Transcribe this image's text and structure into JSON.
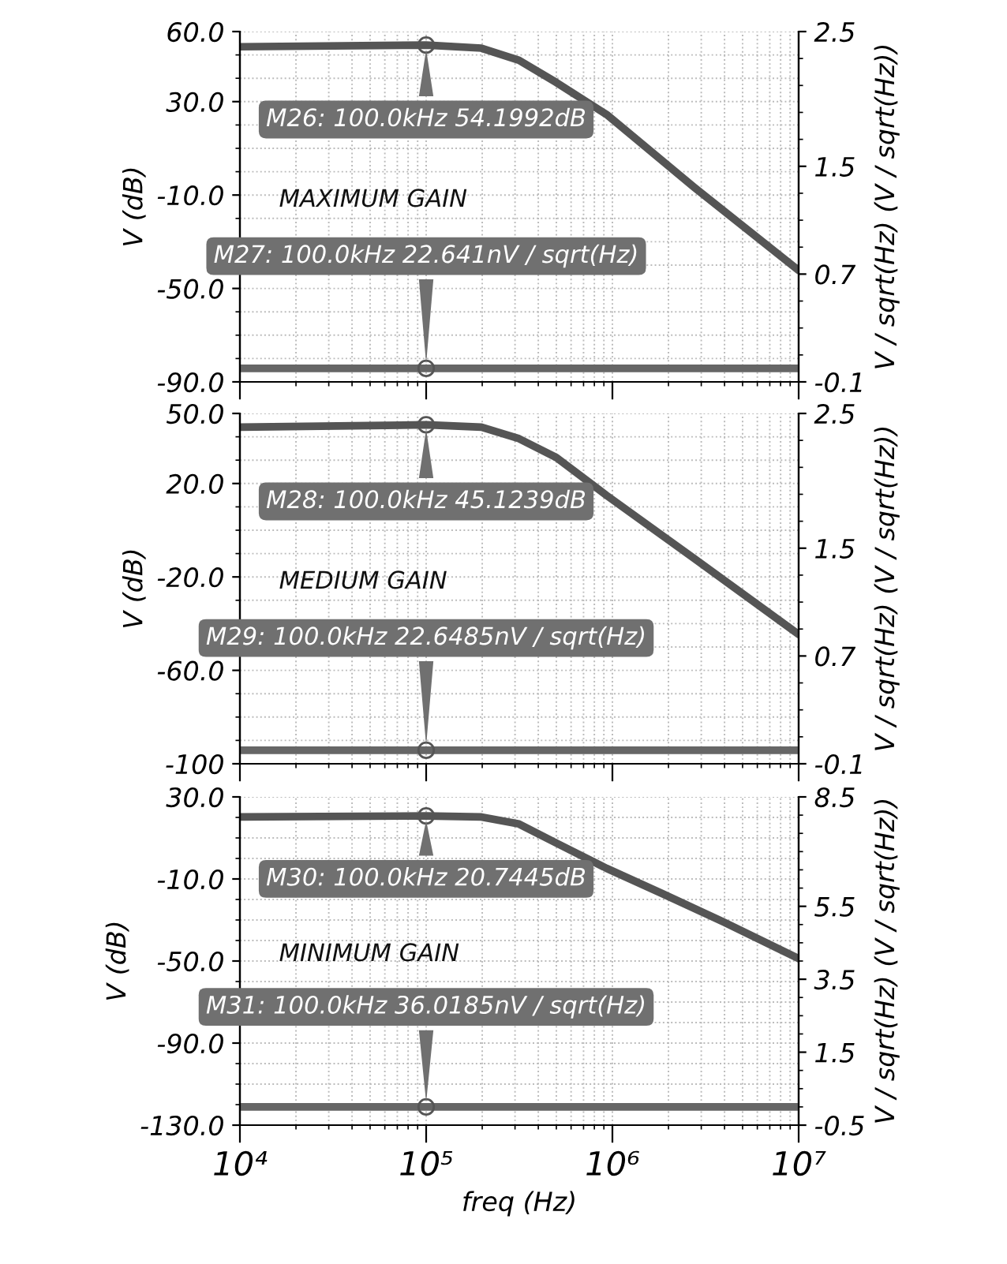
{
  "chart_data": [
    {
      "type": "line",
      "log": "x",
      "grid": true,
      "tick_labels": "y",
      "line_style": "solid",
      "ylabel": "V (dB)",
      "y2label": "V / sqrt(Hz) (V / sqrt(Hz))",
      "xlim": [
        10000,
        10000000
      ],
      "ylim": [
        -90,
        60
      ],
      "yticks": [
        {
          "value": 60,
          "label": "60.0"
        },
        {
          "value": 30,
          "label": "30.0"
        },
        {
          "value": -10,
          "label": "-10.0"
        },
        {
          "value": -50,
          "label": "-50.0"
        },
        {
          "value": -90,
          "label": "-90.0"
        }
      ],
      "y2lim": [
        -0.1,
        2.5
      ],
      "y2ticks": [
        2.5,
        1.5,
        0.7,
        -0.1
      ],
      "series": [
        {
          "color": "#555555",
          "x": [
            10000,
            100000,
            198000,
            315000,
            500000,
            930000,
            2760000,
            10000000
          ],
          "values": [
            53.5,
            54.1992,
            52.9,
            47.7,
            38.2,
            24.5,
            -6.8,
            -42.3
          ]
        },
        {
          "color": "#666666",
          "axis": "y2",
          "x": [
            10000,
            100000,
            10000000
          ],
          "values": [
            0,
            0,
            0
          ]
        }
      ],
      "annotations": [
        "M26: 100.0kHz 54.1992dB",
        "M27: 100.0kHz 22.641nV / sqrt(Hz)",
        "MAXIMUM GAIN"
      ]
    },
    {
      "type": "line",
      "log": "x",
      "grid": true,
      "tick_labels": "y",
      "line_style": "solid",
      "ylabel": "V (dB)",
      "y2label": "V / sqrt(Hz) (V / sqrt(Hz))",
      "xlim": [
        10000,
        10000000
      ],
      "ylim": [
        -100,
        50
      ],
      "yticks": [
        {
          "value": 50,
          "label": "50.0"
        },
        {
          "value": 20,
          "label": "20.0"
        },
        {
          "value": -20,
          "label": "-20.0"
        },
        {
          "value": -60,
          "label": "-60.0"
        },
        -100
      ],
      "y2lim": [
        -0.1,
        2.5
      ],
      "y2ticks": [
        2.5,
        1.5,
        0.7,
        -0.1
      ],
      "series": [
        {
          "color": "#555555",
          "x": [
            10000,
            100000,
            198000,
            315000,
            500000,
            930000,
            2760000,
            10000000
          ],
          "values": [
            44.1,
            45.1239,
            44.1,
            39.2,
            31.1,
            14.9,
            -12.2,
            -44.6
          ]
        },
        {
          "color": "#666666",
          "axis": "y2",
          "x": [
            10000,
            100000,
            10000000
          ],
          "values": [
            0,
            0,
            0
          ]
        }
      ],
      "annotations": [
        "M28: 100.0kHz 45.1239dB",
        "M29: 100.0kHz 22.6485nV / sqrt(Hz)",
        "MEDIUM GAIN"
      ]
    },
    {
      "type": "line",
      "log": "x",
      "grid": true,
      "line_style": "solid",
      "xlabel": "freq (Hz)",
      "ylabel": "V (dB)",
      "y2label": "V / sqrt(Hz) (V / sqrt(Hz))",
      "xlim": [
        10000,
        10000000
      ],
      "xticks": [
        {
          "value": 10000,
          "label": "10⁴"
        },
        {
          "value": 100000,
          "label": "10⁵"
        },
        {
          "value": 1000000,
          "label": "10⁶"
        },
        {
          "value": 10000000,
          "label": "10⁷"
        }
      ],
      "ylim": [
        -130,
        30
      ],
      "yticks": [
        {
          "value": 30,
          "label": "30.0"
        },
        {
          "value": -10,
          "label": "-10.0"
        },
        {
          "value": -50,
          "label": "-50.0"
        },
        {
          "value": -90,
          "label": "-90.0"
        },
        {
          "value": -130,
          "label": "-130.0"
        }
      ],
      "y2lim": [
        -0.5,
        8.5
      ],
      "y2ticks": [
        8.5,
        5.5,
        3.5,
        1.5,
        -0.5
      ],
      "series": [
        {
          "color": "#555555",
          "x": [
            10000,
            100000,
            198000,
            315000,
            500000,
            930000,
            1850000,
            3940000,
            10000000
          ],
          "values": [
            20.2,
            20.7445,
            20.2,
            16.8,
            7.5,
            -4.8,
            -17.1,
            -30.9,
            -48.8
          ]
        },
        {
          "color": "#666666",
          "axis": "y2",
          "x": [
            10000,
            100000,
            10000000
          ],
          "values": [
            0,
            0,
            0
          ]
        }
      ],
      "annotations": [
        "M30: 100.0kHz 20.7445dB",
        "M31: 100.0kHz 36.0185nV / sqrt(Hz)",
        "MINIMUM GAIN"
      ]
    }
  ]
}
